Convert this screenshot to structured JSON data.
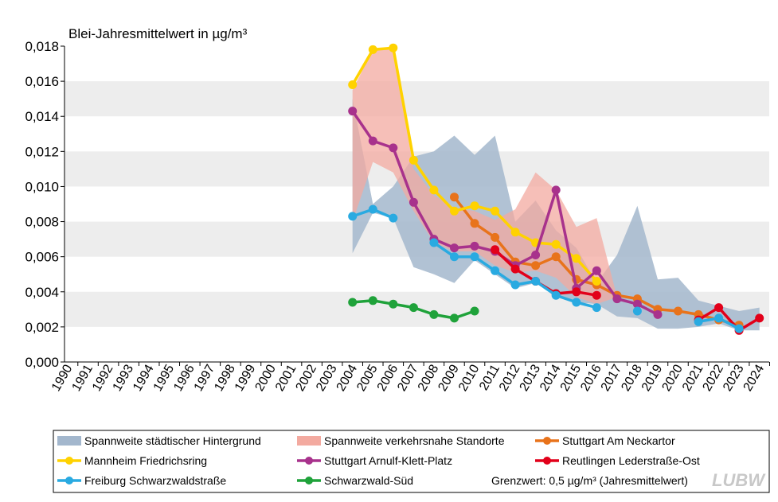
{
  "chart_data": {
    "type": "line",
    "title": "Blei-Jahresmittelwert  in µg/m³",
    "ylim": [
      0,
      0.018
    ],
    "yticks": [
      0,
      0.002,
      0.004,
      0.006,
      0.008,
      0.01,
      0.012,
      0.014,
      0.016,
      0.018
    ],
    "ytick_labels": [
      "0,000",
      "0,002",
      "0,004",
      "0,006",
      "0,008",
      "0,010",
      "0,012",
      "0,014",
      "0,016",
      "0,018"
    ],
    "categories": [
      "1990",
      "1991",
      "1992",
      "1993",
      "1994",
      "1995",
      "1996",
      "1997",
      "1998",
      "1999",
      "2000",
      "2001",
      "2002",
      "2003",
      "2004",
      "2005",
      "2006",
      "2007",
      "2008",
      "2009",
      "2010",
      "2011",
      "2012",
      "2013",
      "2014",
      "2015",
      "2016",
      "2017",
      "2018",
      "2019",
      "2020",
      "2021",
      "2022",
      "2023",
      "2024"
    ],
    "bands": [
      {
        "name": "Spannweite städtischer Hintergrund",
        "color": "#a3b7cd",
        "x": [
          2004,
          2005,
          2006,
          2007,
          2008,
          2009,
          2010,
          2011,
          2012,
          2013,
          2014,
          2015,
          2016,
          2017,
          2018,
          2019,
          2020,
          2021,
          2022,
          2023,
          2024
        ],
        "low": [
          0.0062,
          0.0085,
          0.0082,
          0.0054,
          0.005,
          0.0045,
          0.0058,
          0.005,
          0.0042,
          0.0045,
          0.0038,
          0.0034,
          0.0033,
          0.0026,
          0.0025,
          0.0019,
          0.0019,
          0.002,
          0.0022,
          0.0018,
          0.0018
        ],
        "high": [
          0.015,
          0.009,
          0.01,
          0.0117,
          0.012,
          0.0129,
          0.0118,
          0.0129,
          0.008,
          0.0092,
          0.0075,
          0.0065,
          0.0045,
          0.0061,
          0.0089,
          0.0047,
          0.0048,
          0.0035,
          0.0032,
          0.0029,
          0.0031
        ]
      },
      {
        "name": "Spannweite verkehrsnahe Standorte",
        "color": "#f3aaa0",
        "x": [
          2004,
          2005,
          2006,
          2007,
          2008,
          2009,
          2010,
          2011,
          2012,
          2013,
          2014,
          2015,
          2016,
          2017
        ],
        "low": [
          0.008,
          0.0114,
          0.0108,
          0.0086,
          0.0068,
          0.0063,
          0.0063,
          0.0055,
          0.0051,
          0.0052,
          0.0048,
          0.0037,
          0.0033,
          0.0037
        ],
        "high": [
          0.0155,
          0.0178,
          0.0178,
          0.011,
          0.0095,
          0.0088,
          0.0086,
          0.0081,
          0.0087,
          0.0108,
          0.0098,
          0.0077,
          0.0082,
          0.0037
        ]
      }
    ],
    "series": [
      {
        "name": "Stuttgart Am Neckartor",
        "color": "#e8731b",
        "x": [
          2009,
          2010,
          2011,
          2012,
          2013,
          2014,
          2015,
          2016,
          2017,
          2018,
          2019,
          2020,
          2021,
          2022,
          2023
        ],
        "values": [
          0.0094,
          0.0079,
          0.0071,
          0.0057,
          0.0055,
          0.006,
          0.0047,
          0.0044,
          0.0038,
          0.0036,
          0.003,
          0.0029,
          0.0027,
          0.0024,
          0.0021
        ]
      },
      {
        "name": "Mannheim Friedrichsring",
        "color": "#ffd200",
        "x": [
          2004,
          2005,
          2006,
          2007,
          2008,
          2009,
          2010,
          2011,
          2012,
          2013,
          2014,
          2015,
          2016
        ],
        "values": [
          0.0158,
          0.0178,
          0.0179,
          0.0115,
          0.0098,
          0.0086,
          0.0089,
          0.0086,
          0.0074,
          0.0068,
          0.0067,
          0.0059,
          0.0046
        ]
      },
      {
        "name": "Stuttgart Arnulf-Klett-Platz",
        "color": "#a8328c",
        "x": [
          2004,
          2005,
          2006,
          2007,
          2008,
          2009,
          2010,
          2011,
          2012,
          2013,
          2014,
          2015,
          2016,
          2017,
          2018,
          2019
        ],
        "values": [
          0.0143,
          0.0126,
          0.0122,
          0.0091,
          0.007,
          0.0065,
          0.0066,
          0.0063,
          0.0055,
          0.0061,
          0.0098,
          0.0042,
          0.0052,
          0.0036,
          0.0033,
          0.0027
        ]
      },
      {
        "name": "Reutlingen Lederstraße-Ost",
        "color": "#e2001a",
        "x": [
          2011,
          2012,
          2013,
          2014,
          2015,
          2016,
          null,
          null,
          null,
          null,
          2021,
          2022,
          2023,
          2024
        ],
        "values": [
          0.0064,
          0.0053,
          0.0046,
          0.0039,
          0.004,
          0.0038,
          null,
          null,
          null,
          null,
          0.0024,
          0.0031,
          0.0018,
          0.0025
        ]
      },
      {
        "name": "Freiburg Schwarzwaldstraße",
        "color": "#29aae1",
        "x": [
          2004,
          2005,
          2006,
          null,
          2008,
          2009,
          2010,
          2011,
          2012,
          2013,
          2014,
          2015,
          2016,
          null,
          2018,
          null,
          null,
          2021,
          2022,
          2023
        ],
        "values": [
          0.0083,
          0.0087,
          0.0082,
          null,
          0.0068,
          0.006,
          0.006,
          0.0052,
          0.0044,
          0.0046,
          0.0038,
          0.0034,
          0.0031,
          null,
          0.0029,
          null,
          null,
          0.0023,
          0.0025,
          0.0019
        ]
      },
      {
        "name": "Schwarzwald-Süd",
        "color": "#1fa23a",
        "x": [
          2004,
          2005,
          2006,
          2007,
          2008,
          2009,
          2010
        ],
        "values": [
          0.0034,
          0.0035,
          0.0033,
          0.0031,
          0.0027,
          0.0025,
          0.0029
        ]
      }
    ],
    "legend": {
      "placement": "bottom",
      "items": [
        {
          "label": "Spannweite städtischer Hintergrund",
          "kind": "band",
          "color": "#a3b7cd"
        },
        {
          "label": "Spannweite verkehrsnahe Standorte",
          "kind": "band",
          "color": "#f3aaa0"
        },
        {
          "label": "Stuttgart Am Neckartor",
          "kind": "line",
          "color": "#e8731b"
        },
        {
          "label": "Mannheim Friedrichsring",
          "kind": "line",
          "color": "#ffd200"
        },
        {
          "label": "Stuttgart Arnulf-Klett-Platz",
          "kind": "line",
          "color": "#a8328c"
        },
        {
          "label": "Reutlingen Lederstraße-Ost",
          "kind": "line",
          "color": "#e2001a"
        },
        {
          "label": "Freiburg Schwarzwaldstraße",
          "kind": "line",
          "color": "#29aae1"
        },
        {
          "label": "Schwarzwald-Süd",
          "kind": "line",
          "color": "#1fa23a"
        }
      ],
      "note": "Grenzwert:  0,5 µg/m³ (Jahresmittelwert)"
    },
    "logo": "LUBW"
  }
}
